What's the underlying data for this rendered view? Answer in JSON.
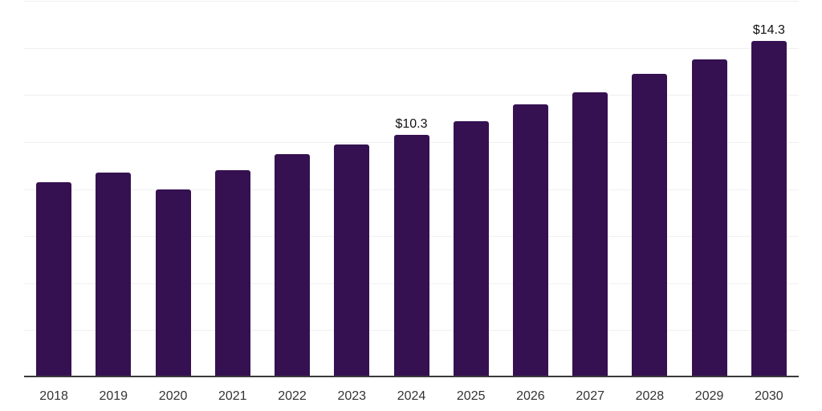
{
  "chart_data": {
    "type": "bar",
    "title": "",
    "xlabel": "",
    "ylabel": "",
    "categories": [
      "2018",
      "2019",
      "2020",
      "2021",
      "2022",
      "2023",
      "2024",
      "2025",
      "2026",
      "2027",
      "2028",
      "2029",
      "2030"
    ],
    "values": [
      8.3,
      8.7,
      8.0,
      8.8,
      9.5,
      9.9,
      10.3,
      10.9,
      11.6,
      12.1,
      12.9,
      13.5,
      14.3
    ],
    "value_labels": [
      "",
      "",
      "",
      "",
      "",
      "",
      "$10.3",
      "",
      "",
      "",
      "",
      "",
      "$14.3"
    ],
    "ylim": [
      0,
      16
    ],
    "gridline_step": 2,
    "grid": true,
    "legend": "none",
    "y_tick_labels_visible": false,
    "colors": {
      "bar": "#351151",
      "axis_line": "#3a3a3a",
      "gridline": "#f0f0f0",
      "tick_label": "#333333",
      "value_label": "#111111",
      "background": "#ffffff"
    }
  }
}
